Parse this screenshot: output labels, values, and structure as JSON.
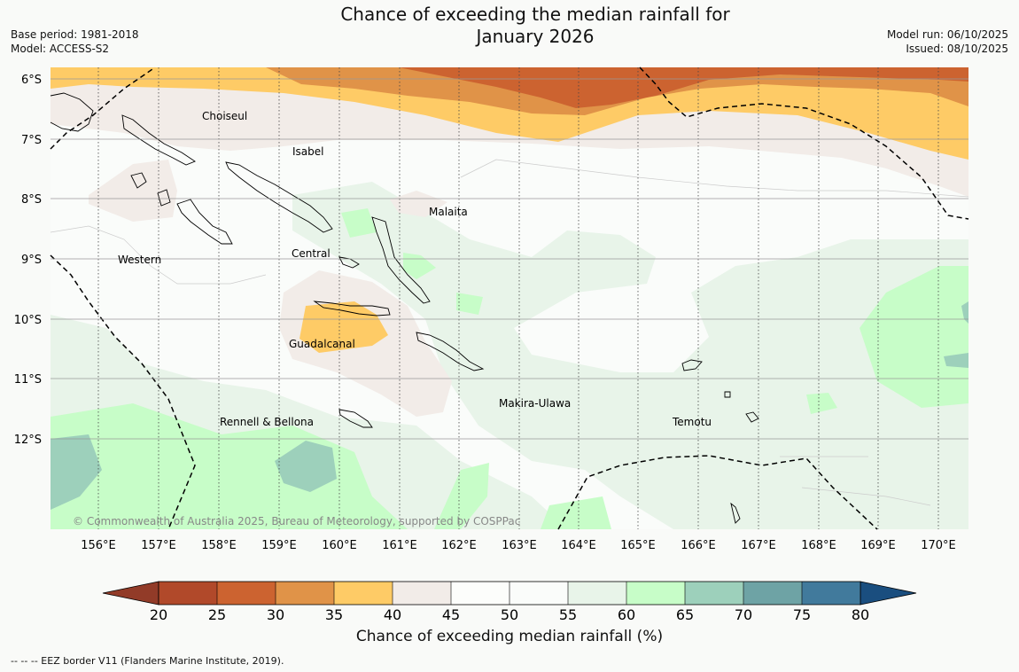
{
  "title_line1": "Chance of exceeding the median rainfall for",
  "title_line2": "January 2026",
  "meta": {
    "base_period": "Base period: 1981-2018",
    "model": "Model: ACCESS-S2",
    "model_run": "Model run: 06/10/2025",
    "issued": "Issued: 08/10/2025"
  },
  "lat_labels": [
    "6°S",
    "7°S",
    "8°S",
    "9°S",
    "10°S",
    "11°S",
    "12°S"
  ],
  "lon_labels": [
    "156°E",
    "157°E",
    "158°E",
    "159°E",
    "160°E",
    "161°E",
    "162°E",
    "163°E",
    "164°E",
    "165°E",
    "166°E",
    "167°E",
    "168°E",
    "169°E",
    "170°E"
  ],
  "regions": [
    "Choiseul",
    "Isabel",
    "Malaita",
    "Western",
    "Central",
    "Guadalcanal",
    "Makira-Ulawa",
    "Temotu",
    "Rennell & Bellona"
  ],
  "copyright": "© Commonwealth of Australia 2025, Bureau of Meteorology, supported by COSPPac",
  "colorbar": {
    "title": "Chance of exceeding median rainfall (%)",
    "ticks": [
      "20",
      "25",
      "30",
      "35",
      "40",
      "45",
      "50",
      "55",
      "60",
      "65",
      "70",
      "75",
      "80"
    ],
    "colors": [
      "#b1492a",
      "#cc6330",
      "#e09348",
      "#fecb66",
      "#f2ece8",
      "#fcfdfb",
      "#fafcfa",
      "#e8f4e9",
      "#c7fdc8",
      "#9dd0bb",
      "#6ea3a5",
      "#417a9c"
    ],
    "under_color": "#923b28",
    "over_color": "#1a4e7f"
  },
  "footnote": "--  --  -- EEZ border V11 (Flanders Marine Institute, 2019)."
}
